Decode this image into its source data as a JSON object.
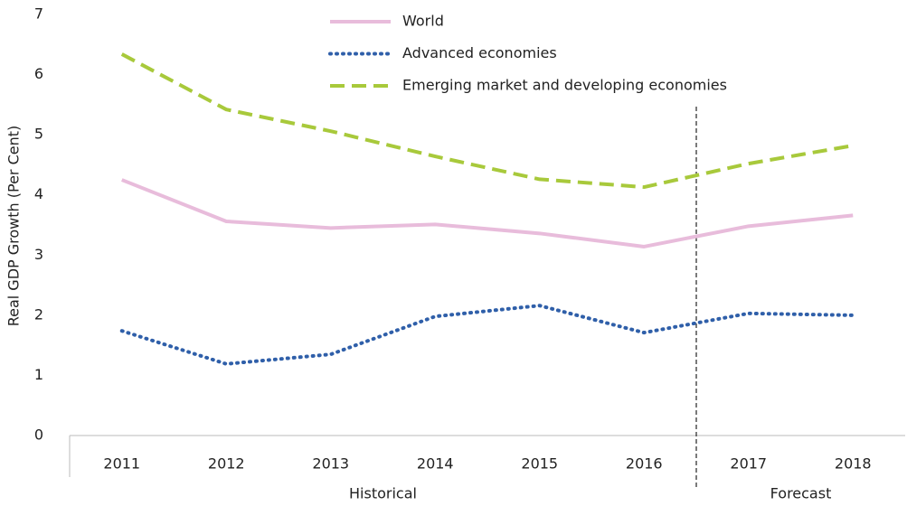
{
  "chart_data": {
    "type": "line",
    "y_label": "Real GDP Growth (Per Cent)",
    "categories": [
      "2011",
      "2012",
      "2013",
      "2014",
      "2015",
      "2016",
      "2017",
      "2018"
    ],
    "series": [
      {
        "name": "World",
        "color": "#e8bcdb",
        "style": "solid",
        "values": [
          4.25,
          3.56,
          3.45,
          3.51,
          3.36,
          3.14,
          3.48,
          3.66
        ]
      },
      {
        "name": "Advanced economies",
        "color": "#2f5fa9",
        "style": "dotted",
        "values": [
          1.74,
          1.19,
          1.35,
          1.98,
          2.16,
          1.71,
          2.03,
          2.0
        ]
      },
      {
        "name": "Emerging market and developing economies",
        "color": "#a8c93b",
        "style": "dashed",
        "values": [
          6.34,
          5.42,
          5.06,
          4.64,
          4.26,
          4.13,
          4.52,
          4.82
        ]
      }
    ],
    "groups": [
      {
        "label": "Historical",
        "first": "2011",
        "last": "2016"
      },
      {
        "label": "Forecast",
        "first": "2017",
        "last": "2018"
      }
    ],
    "ylim": [
      0,
      7
    ],
    "yticks": [
      0,
      1,
      2,
      3,
      4,
      5,
      6,
      7
    ],
    "grid": false,
    "legend": "top"
  }
}
